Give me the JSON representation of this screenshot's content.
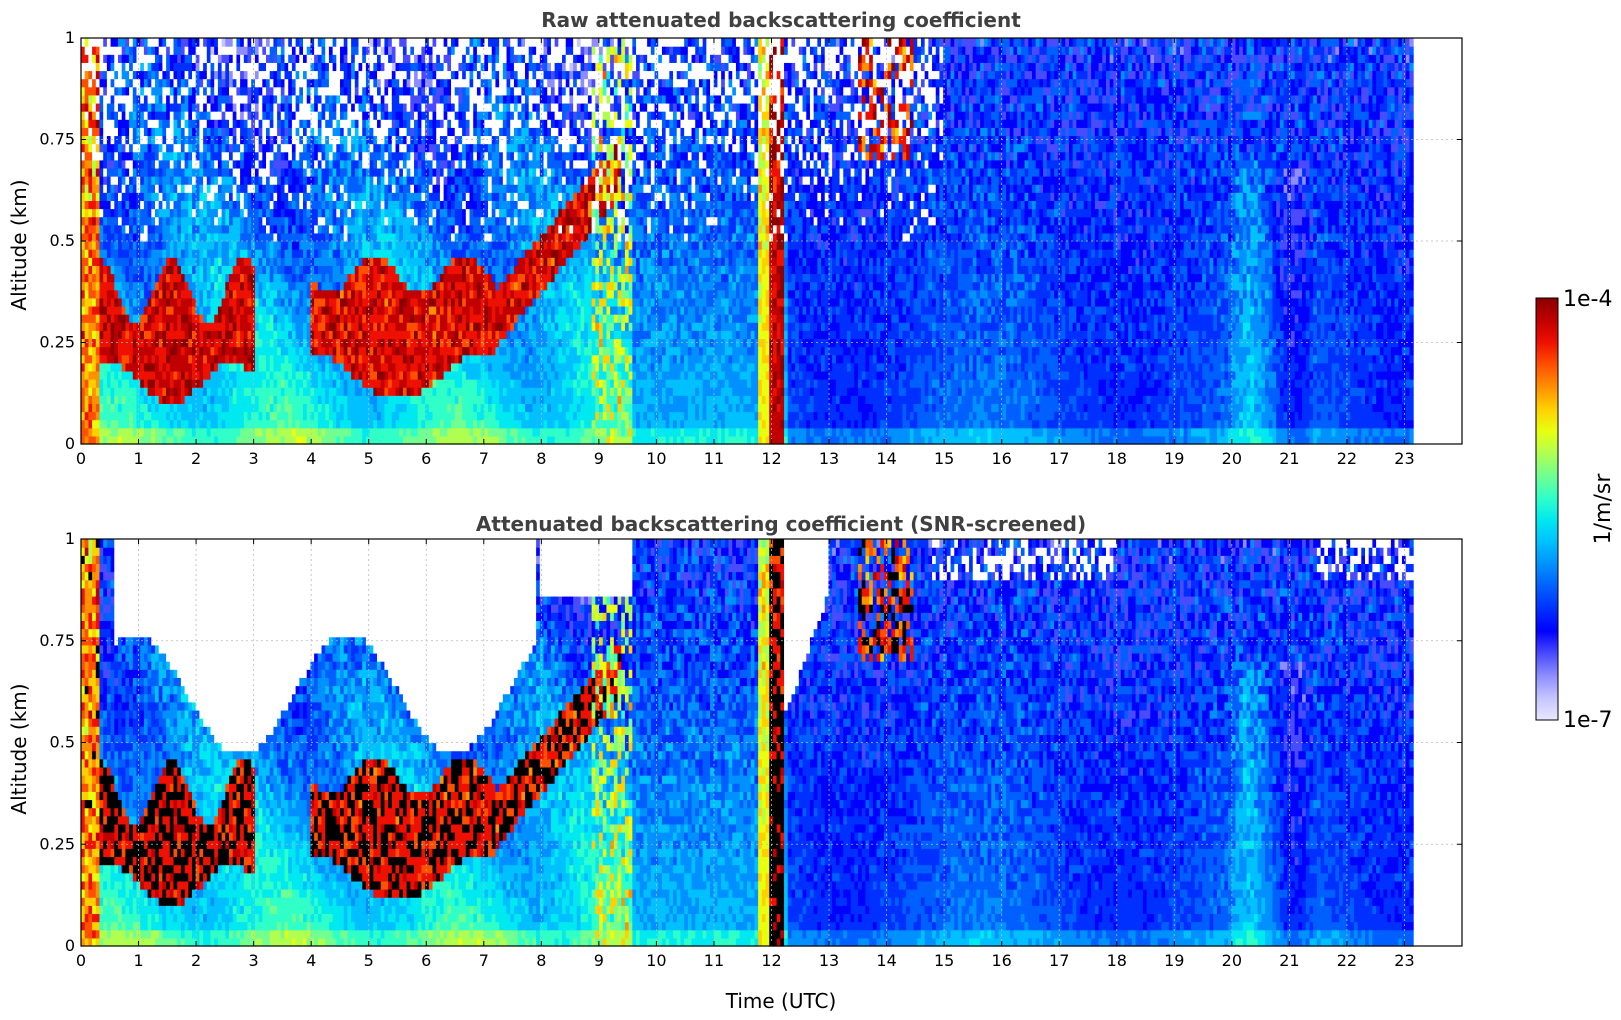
{
  "chart_data": [
    {
      "type": "heatmap",
      "title": "Raw attenuated backscattering coefficient",
      "xlabel": "",
      "ylabel": "Altitude (km)",
      "xlim": [
        0,
        24
      ],
      "ylim": [
        0,
        1
      ],
      "x_ticks": [
        "0",
        "1",
        "2",
        "3",
        "4",
        "5",
        "6",
        "7",
        "8",
        "9",
        "10",
        "11",
        "12",
        "13",
        "14",
        "15",
        "16",
        "17",
        "18",
        "19",
        "20",
        "21",
        "22",
        "23"
      ],
      "y_ticks": [
        "0",
        "0.25",
        "0.5",
        "0.75",
        "1"
      ],
      "data_end_time": 23.15,
      "grid": true,
      "colorscale": "jet, log10",
      "value_range": [
        1e-07,
        0.0001
      ],
      "features": [
        {
          "time_start": 0.35,
          "time_end": 3.0,
          "alt_bottom": 0.15,
          "alt_top": 0.38,
          "level": "1e-4",
          "description": "dense layer"
        },
        {
          "time_start": 4.0,
          "time_end": 7.2,
          "alt_bottom": 0.15,
          "alt_top": 0.42,
          "level": "1e-4"
        },
        {
          "time_start": 7.2,
          "time_end": 9.4,
          "alt_bottom": 0.3,
          "alt_top": 0.7,
          "level": "1e-4"
        },
        {
          "time_start": 11.7,
          "time_end": 12.2,
          "alt_bottom": 0,
          "alt_top": 1,
          "level": "1e-4"
        },
        {
          "time_start": 13.5,
          "time_end": 14.5,
          "alt_bottom": 0.7,
          "alt_top": 1,
          "level": "1e-4"
        }
      ]
    },
    {
      "type": "heatmap",
      "title": "Attenuated backscattering coefficient (SNR-screened)",
      "xlabel": "Time (UTC)",
      "ylabel": "Altitude (km)",
      "xlim": [
        0,
        24
      ],
      "ylim": [
        0,
        1
      ],
      "x_ticks": [
        "0",
        "1",
        "2",
        "3",
        "4",
        "5",
        "6",
        "7",
        "8",
        "9",
        "10",
        "11",
        "12",
        "13",
        "14",
        "15",
        "16",
        "17",
        "18",
        "19",
        "20",
        "21",
        "22",
        "23"
      ],
      "y_ticks": [
        "0",
        "0.25",
        "0.5",
        "0.75",
        "1"
      ],
      "data_end_time": 23.15,
      "grid": true,
      "colorscale": "jet, log10",
      "value_range": [
        1e-07,
        0.0001
      ],
      "screened_regions": "low-SNR pixels (mostly above the cloud layers) shown blank"
    }
  ],
  "colorbar": {
    "label": "1/m/sr",
    "max_label": "1e-4",
    "min_label": "1e-7",
    "scale": "log10",
    "colors": [
      "#e8e8ff",
      "#c4c4ff",
      "#8d8dff",
      "#4a4aff",
      "#0000ff",
      "#0030ff",
      "#0060ff",
      "#0090ff",
      "#00c0ff",
      "#00e8f0",
      "#30ffc8",
      "#70ff90",
      "#b0ff50",
      "#e8ff10",
      "#ffd000",
      "#ff9000",
      "#ff5000",
      "#ee1000",
      "#c00000",
      "#8b0000"
    ]
  }
}
